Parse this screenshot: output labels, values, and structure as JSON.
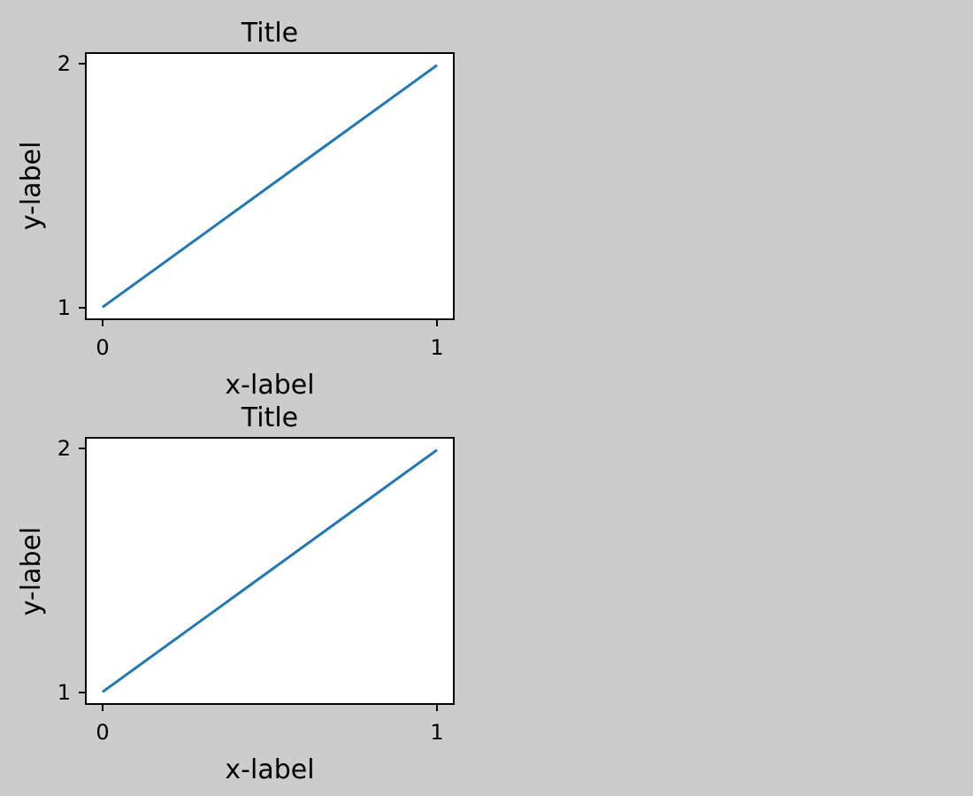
{
  "figure": {
    "background": "#cccccc"
  },
  "chart_data": [
    {
      "type": "line",
      "title": "Title",
      "xlabel": "x-label",
      "ylabel": "y-label",
      "xlim": [
        -0.05,
        1.05
      ],
      "ylim": [
        0.95,
        2.05
      ],
      "xticks": [
        "0",
        "1"
      ],
      "yticks": [
        "1",
        "2"
      ],
      "grid": false,
      "series": [
        {
          "x": [
            0,
            1
          ],
          "y": [
            1,
            2
          ],
          "color": "#1f77b4"
        }
      ]
    },
    {
      "type": "line",
      "title": "Title",
      "xlabel": "x-label",
      "ylabel": "y-label",
      "xlim": [
        -0.05,
        1.05
      ],
      "ylim": [
        0.95,
        2.05
      ],
      "xticks": [
        "0",
        "1"
      ],
      "yticks": [
        "1",
        "2"
      ],
      "grid": false,
      "series": [
        {
          "x": [
            0,
            1
          ],
          "y": [
            1,
            2
          ],
          "color": "#1f77b4"
        }
      ]
    }
  ]
}
